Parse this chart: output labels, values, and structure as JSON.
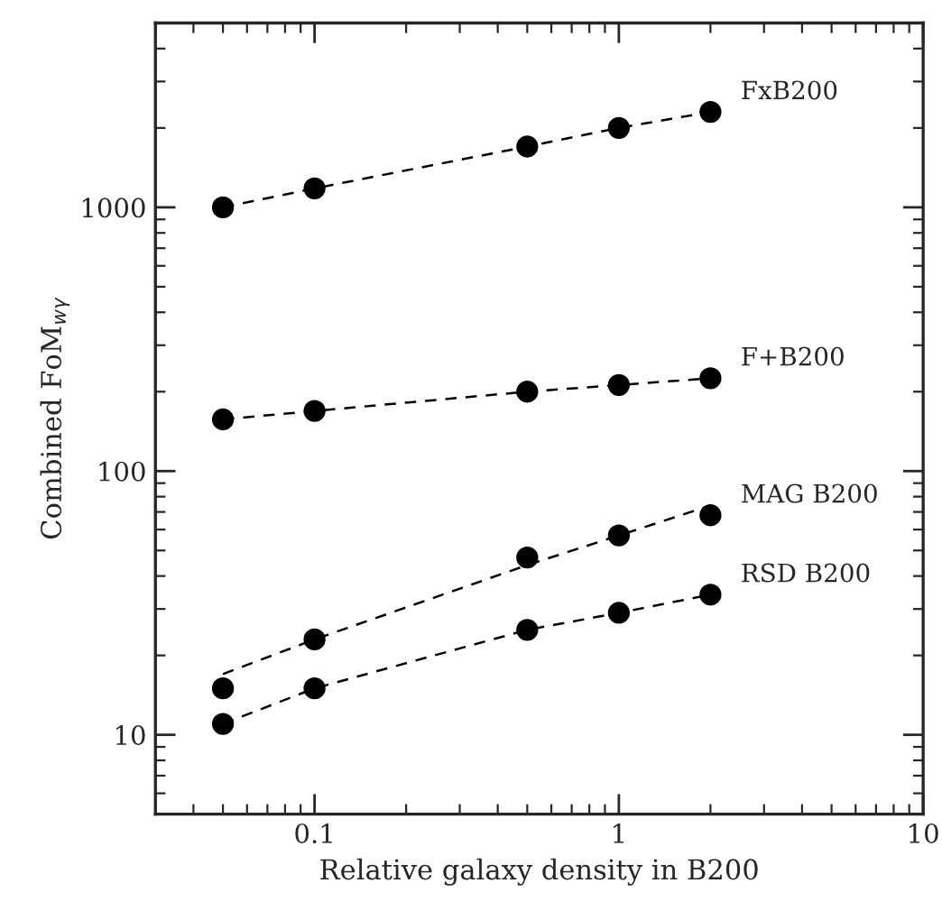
{
  "chart_data": {
    "type": "scatter",
    "xlabel": "Relative galaxy density in B200",
    "ylabel": "Combined FoM$_{wγ}$",
    "log": "xy",
    "xlim": [
      0.03,
      10
    ],
    "ylim": [
      5,
      5000
    ],
    "xticks": [
      0.1,
      1,
      10
    ],
    "yticks": [
      10,
      100,
      1000
    ],
    "grid": false,
    "legend": false,
    "marker": "circle",
    "series": [
      {
        "name": "FxB200",
        "color": "#000000",
        "x": [
          0.05,
          0.1,
          0.5,
          1,
          2
        ],
        "values": [
          1000,
          1180,
          1700,
          2000,
          2300
        ]
      },
      {
        "name": "F+B200",
        "color": "#000000",
        "x": [
          0.05,
          0.1,
          0.5,
          1,
          2
        ],
        "values": [
          157,
          169,
          200,
          212,
          225
        ]
      },
      {
        "name": "MAG B200",
        "color": "#000000",
        "x": [
          0.05,
          0.1,
          0.5,
          1,
          2
        ],
        "values": [
          15,
          23,
          47,
          57,
          68
        ]
      },
      {
        "name": "RSD B200",
        "color": "#000000",
        "x": [
          0.05,
          0.1,
          0.5,
          1,
          2
        ],
        "values": [
          11,
          15,
          25,
          29,
          34
        ]
      },
      {
        "type": "line",
        "marker": "none",
        "line_style": "dashed",
        "color": "#000000",
        "x": [
          0.05,
          0.1,
          0.5,
          1,
          2
        ],
        "values": [
          1000,
          1180,
          1700,
          2000,
          2300
        ]
      },
      {
        "type": "line",
        "marker": "none",
        "line_style": "dashed",
        "color": "#000000",
        "x": [
          0.05,
          0.1,
          0.5,
          1,
          2
        ],
        "values": [
          157,
          169,
          200,
          212,
          225
        ]
      },
      {
        "type": "line",
        "marker": "none",
        "line_style": "dashed",
        "color": "#000000",
        "x": [
          0.05,
          0.1,
          0.5,
          1,
          2
        ],
        "values": [
          17,
          23,
          44,
          57,
          74
        ]
      },
      {
        "type": "line",
        "marker": "none",
        "line_style": "dashed",
        "color": "#000000",
        "x": [
          0.05,
          0.1,
          0.5,
          1,
          2
        ],
        "values": [
          11,
          15,
          25,
          29,
          34
        ]
      }
    ]
  }
}
